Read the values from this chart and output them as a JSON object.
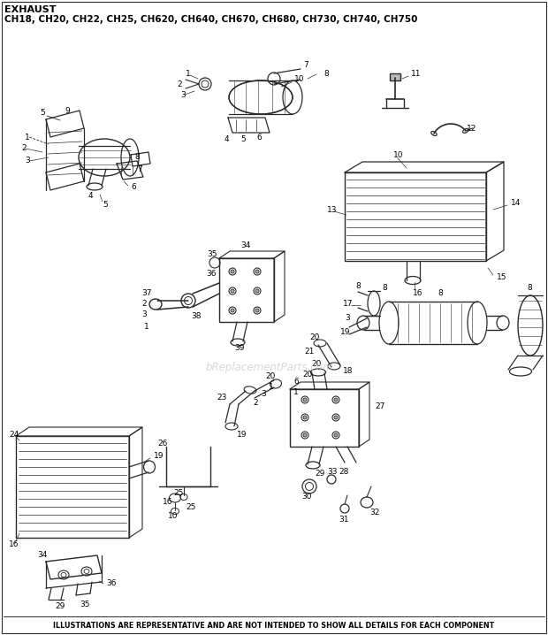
{
  "title_line1": "EXHAUST",
  "title_line2": "CH18, CH20, CH22, CH25, CH620, CH640, CH670, CH680, CH730, CH740, CH750",
  "footer": "ILLUSTRATIONS ARE REPRESENTATIVE AND ARE NOT INTENDED TO SHOW ALL DETAILS FOR EACH COMPONENT",
  "watermark": "bReplacementParts.com",
  "bg_color": "#ffffff",
  "title_color": "#000000",
  "dc": "#2a2a2a",
  "fig_width": 6.2,
  "fig_height": 7.18,
  "dpi": 100,
  "title1_fs": 8,
  "title2_fs": 7.5,
  "footer_fs": 5.8,
  "label_fs": 6.5
}
